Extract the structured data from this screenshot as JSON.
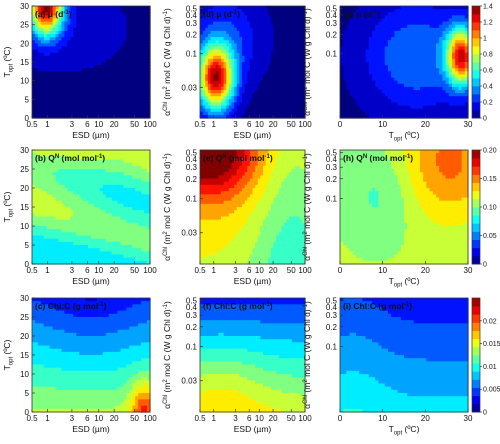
{
  "figure": {
    "background": "#ffffff"
  },
  "axes_labels": {
    "esd": "ESD (µm)",
    "topt_x": "T_opt (ºC)",
    "topt_y": "T_opt (ºC)",
    "alpha": "α^Chi (m² mol C (W g Chl d)⁻¹)"
  },
  "chart_data": [
    {
      "type": "heatmap",
      "panel": "a",
      "title": "(a) μ (d⁻¹)",
      "variable": "mu",
      "row": 0,
      "col": 0,
      "xscale": "log",
      "xlim": [
        0.5,
        100
      ],
      "xticks": [
        "0.5",
        "1",
        "3",
        "6",
        "10",
        "20",
        "50",
        "100"
      ],
      "ylim": [
        0,
        30
      ],
      "yticks": [
        "0",
        "5",
        "10",
        "15",
        "20",
        "25",
        "30"
      ],
      "xlabel": "ESD (µm)",
      "ylabel": "T_opt (ºC)",
      "clim": [
        0,
        1.4
      ]
    },
    {
      "type": "heatmap",
      "panel": "d",
      "title": "(d) μ (d⁻¹)",
      "variable": "mu",
      "row": 0,
      "col": 1,
      "xscale": "log",
      "xlim": [
        0.5,
        100
      ],
      "xticks": [
        "0.5",
        "1",
        "3",
        "6",
        "10",
        "20",
        "50",
        "100"
      ],
      "yscale": "log",
      "ylim": [
        0.01,
        0.55
      ],
      "yticks": [
        "0.03",
        "0.1",
        "0.2",
        "0.3",
        "0.4",
        "0.5"
      ],
      "xlabel": "ESD (µm)",
      "ylabel": "α^Chi (m² mol C (W g Chl d)⁻¹)",
      "clim": [
        0,
        1.4
      ]
    },
    {
      "type": "heatmap",
      "panel": "g",
      "title": "(g) μ (d⁻¹)",
      "variable": "mu",
      "row": 0,
      "col": 2,
      "xlim": [
        0,
        30
      ],
      "xticks": [
        "0",
        "10",
        "20",
        "30"
      ],
      "yscale": "log",
      "ylim": [
        0.01,
        0.55
      ],
      "yticks": [
        "0.1",
        "0.2",
        "0.3",
        "0.4",
        "0.5"
      ],
      "xlabel": "T_opt (ºC)",
      "ylabel": "α^Chi (m² mol C (W g Chl d)⁻¹)",
      "clim": [
        0,
        1.4
      ]
    },
    {
      "type": "heatmap",
      "panel": "b",
      "title": "(b) Q^N (mol mol⁻¹)",
      "variable": "QN",
      "row": 1,
      "col": 0,
      "xscale": "log",
      "xlim": [
        0.5,
        100
      ],
      "xticks": [
        "0.5",
        "1",
        "3",
        "6",
        "10",
        "20",
        "50",
        "100"
      ],
      "ylim": [
        0,
        30
      ],
      "yticks": [
        "0",
        "5",
        "10",
        "15",
        "20",
        "25",
        "30"
      ],
      "xlabel": "ESD (µm)",
      "ylabel": "T_opt (ºC)",
      "clim": [
        0,
        0.2
      ]
    },
    {
      "type": "heatmap",
      "panel": "e",
      "title": "(e) Q^N (mol mol⁻¹)",
      "variable": "QN",
      "row": 1,
      "col": 1,
      "xscale": "log",
      "xlim": [
        0.5,
        100
      ],
      "xticks": [
        "0.5",
        "1",
        "3",
        "6",
        "10",
        "20",
        "50",
        "100"
      ],
      "yscale": "log",
      "ylim": [
        0.01,
        0.55
      ],
      "yticks": [
        "0.03",
        "0.1",
        "0.2",
        "0.3",
        "0.4",
        "0.5"
      ],
      "xlabel": "ESD (µm)",
      "ylabel": "α^Chi (m² mol C (W g Chl d)⁻¹)",
      "clim": [
        0,
        0.2
      ]
    },
    {
      "type": "heatmap",
      "panel": "h",
      "title": "(h) Q^N (mol mol⁻¹)",
      "variable": "QN",
      "row": 1,
      "col": 2,
      "xlim": [
        0,
        30
      ],
      "xticks": [
        "0",
        "10",
        "20",
        "30"
      ],
      "yscale": "log",
      "ylim": [
        0.01,
        0.55
      ],
      "yticks": [
        "0.1",
        "0.2",
        "0.3",
        "0.4",
        "0.5"
      ],
      "xlabel": "T_opt (ºC)",
      "ylabel": "α^Chi (m² mol C (W g Chl d)⁻¹)",
      "clim": [
        0,
        0.2
      ]
    },
    {
      "type": "heatmap",
      "panel": "c",
      "title": "(c) Chl:C (g mol⁻¹)",
      "variable": "chl",
      "row": 2,
      "col": 0,
      "xscale": "log",
      "xlim": [
        0.5,
        100
      ],
      "xticks": [
        "0.5",
        "1",
        "3",
        "6",
        "10",
        "20",
        "50",
        "100"
      ],
      "ylim": [
        0,
        30
      ],
      "yticks": [
        "0",
        "5",
        "10",
        "15",
        "20",
        "25",
        "30"
      ],
      "xlabel": "ESD (µm)",
      "ylabel": "T_opt (ºC)",
      "clim": [
        0,
        0.025
      ]
    },
    {
      "type": "heatmap",
      "panel": "f",
      "title": "(f) Chl:C (g mol⁻¹)",
      "variable": "chl",
      "row": 2,
      "col": 1,
      "xscale": "log",
      "xlim": [
        0.5,
        100
      ],
      "xticks": [
        "0.5",
        "1",
        "3",
        "6",
        "10",
        "20",
        "50",
        "100"
      ],
      "yscale": "log",
      "ylim": [
        0.01,
        0.55
      ],
      "yticks": [
        "0.03",
        "0.1",
        "0.2",
        "0.3",
        "0.4",
        "0.5"
      ],
      "xlabel": "ESD (µm)",
      "ylabel": "α^Chi (m² mol C (W g Chl d)⁻¹)",
      "clim": [
        0,
        0.025
      ]
    },
    {
      "type": "heatmap",
      "panel": "i",
      "title": "(i) Chl:C (g mol⁻¹)",
      "variable": "chl",
      "row": 2,
      "col": 2,
      "xlim": [
        0,
        30
      ],
      "xticks": [
        "0",
        "10",
        "20",
        "30"
      ],
      "yscale": "log",
      "ylim": [
        0.01,
        0.55
      ],
      "yticks": [
        "0.1",
        "0.2",
        "0.3",
        "0.4",
        "0.5"
      ],
      "xlabel": "T_opt (ºC)",
      "ylabel": "α^Chi (m² mol C (W g Chl d)⁻¹)",
      "clim": [
        0,
        0.025
      ]
    }
  ],
  "colorbars": [
    {
      "row": 0,
      "ticks": [
        "0",
        "0.2",
        "0.4",
        "0.6",
        "0.8",
        "1",
        "1.2",
        "1.4"
      ],
      "min": 0,
      "max": 1.4
    },
    {
      "row": 1,
      "ticks": [
        "0",
        "0.05",
        "0.10",
        "0.15",
        "0.20"
      ],
      "min": 0,
      "max": 0.2
    },
    {
      "row": 2,
      "ticks": [
        "0",
        "0.005",
        "0.01",
        "0.015",
        "0.02"
      ],
      "min": 0,
      "max": 0.025
    }
  ],
  "colormap": "jet",
  "colors": {
    "axis": "#333333",
    "text": "#111111"
  }
}
